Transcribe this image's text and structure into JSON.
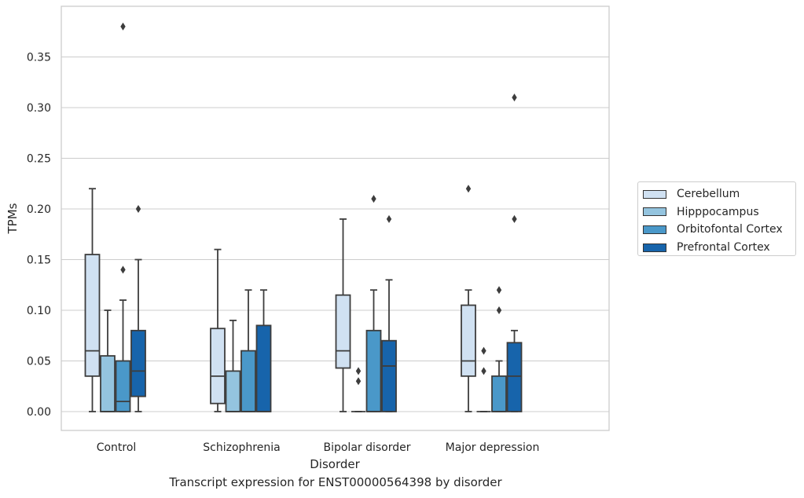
{
  "chart_data": {
    "type": "boxplot",
    "caption": "Transcript expression for ENST00000564398 by disorder",
    "xlabel": "Disorder",
    "ylabel": "TPMs",
    "ylim": [
      -0.018,
      0.398
    ],
    "yticks": [
      0.0,
      0.05,
      0.1,
      0.15,
      0.2,
      0.25,
      0.3,
      0.35
    ],
    "ytick_labels": [
      "0.00",
      "0.05",
      "0.10",
      "0.15",
      "0.20",
      "0.25",
      "0.30",
      "0.35"
    ],
    "grid": true,
    "legend_position": "right",
    "categories": [
      "Control",
      "Schizophrenia",
      "Bipolar disorder",
      "Major depression"
    ],
    "series": [
      {
        "name": "Cerebellum",
        "color": "#d0e1f2",
        "boxes": [
          {
            "whislo": 0.0,
            "q1": 0.035,
            "med": 0.06,
            "q3": 0.155,
            "whishi": 0.22,
            "fliers": []
          },
          {
            "whislo": 0.0,
            "q1": 0.008,
            "med": 0.035,
            "q3": 0.082,
            "whishi": 0.16,
            "fliers": []
          },
          {
            "whislo": 0.0,
            "q1": 0.043,
            "med": 0.06,
            "q3": 0.115,
            "whishi": 0.19,
            "fliers": []
          },
          {
            "whislo": 0.0,
            "q1": 0.035,
            "med": 0.05,
            "q3": 0.105,
            "whishi": 0.12,
            "fliers": [
              0.22
            ]
          }
        ]
      },
      {
        "name": "Hipppocampus",
        "color": "#94c4df",
        "boxes": [
          {
            "whislo": 0.0,
            "q1": 0.0,
            "med": 0.0,
            "q3": 0.055,
            "whishi": 0.1,
            "fliers": []
          },
          {
            "whislo": 0.0,
            "q1": 0.0,
            "med": 0.0,
            "q3": 0.04,
            "whishi": 0.09,
            "fliers": []
          },
          {
            "whislo": 0.0,
            "q1": 0.0,
            "med": 0.0,
            "q3": 0.0,
            "whishi": 0.0,
            "fliers": [
              0.03,
              0.04
            ]
          },
          {
            "whislo": 0.0,
            "q1": 0.0,
            "med": 0.0,
            "q3": 0.0,
            "whishi": 0.0,
            "fliers": [
              0.04,
              0.06
            ]
          }
        ]
      },
      {
        "name": "Orbitofontal Cortex",
        "color": "#4a98c9",
        "boxes": [
          {
            "whislo": 0.0,
            "q1": 0.0,
            "med": 0.01,
            "q3": 0.05,
            "whishi": 0.11,
            "fliers": [
              0.14,
              0.38
            ]
          },
          {
            "whislo": 0.0,
            "q1": 0.0,
            "med": 0.0,
            "q3": 0.06,
            "whishi": 0.12,
            "fliers": []
          },
          {
            "whislo": 0.0,
            "q1": 0.0,
            "med": 0.0,
            "q3": 0.08,
            "whishi": 0.12,
            "fliers": [
              0.21
            ]
          },
          {
            "whislo": 0.0,
            "q1": 0.0,
            "med": 0.0,
            "q3": 0.035,
            "whishi": 0.05,
            "fliers": [
              0.1,
              0.12
            ]
          }
        ]
      },
      {
        "name": "Prefrontal Cortex",
        "color": "#1764ab",
        "boxes": [
          {
            "whislo": 0.0,
            "q1": 0.015,
            "med": 0.04,
            "q3": 0.08,
            "whishi": 0.15,
            "fliers": [
              0.2
            ]
          },
          {
            "whislo": 0.0,
            "q1": 0.0,
            "med": 0.0,
            "q3": 0.085,
            "whishi": 0.12,
            "fliers": []
          },
          {
            "whislo": 0.0,
            "q1": 0.0,
            "med": 0.045,
            "q3": 0.07,
            "whishi": 0.13,
            "fliers": [
              0.19
            ]
          },
          {
            "whislo": 0.0,
            "q1": 0.0,
            "med": 0.035,
            "q3": 0.068,
            "whishi": 0.08,
            "fliers": [
              0.19,
              0.31
            ]
          }
        ]
      }
    ]
  }
}
